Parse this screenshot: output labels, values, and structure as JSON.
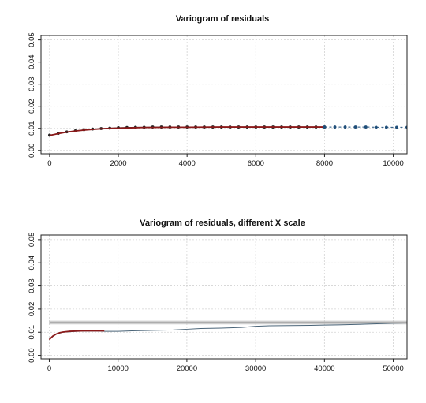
{
  "chart_data": [
    {
      "type": "line",
      "title": "Variogram of residuals",
      "xlabel": "",
      "ylabel": "",
      "xlim": [
        -250,
        10400
      ],
      "ylim": [
        -0.0015,
        0.052
      ],
      "xticks": [
        0,
        2000,
        4000,
        6000,
        8000,
        10000
      ],
      "yticks": [
        0.0,
        0.01,
        0.02,
        0.03,
        0.04,
        0.05
      ],
      "ytick_labels": [
        "0.00",
        "0.01",
        "0.02",
        "0.03",
        "0.04",
        "0.05"
      ],
      "grid": true,
      "series": [
        {
          "kind": "points-solid",
          "color": "#333333",
          "x": [
            0,
            250,
            500,
            750,
            1000,
            1250,
            1500,
            1750,
            2000,
            2250,
            2500,
            2750,
            3000,
            3250,
            3500,
            3750,
            4000,
            4250,
            4500,
            4750,
            5000,
            5250,
            5500,
            5750,
            6000,
            6250,
            6500,
            6750,
            7000,
            7250,
            7500,
            7750,
            8000
          ],
          "y": [
            0.0069,
            0.0077,
            0.0084,
            0.0089,
            0.0094,
            0.0097,
            0.0099,
            0.0101,
            0.0103,
            0.0104,
            0.0105,
            0.0105,
            0.0106,
            0.0106,
            0.0106,
            0.0106,
            0.0106,
            0.0106,
            0.0106,
            0.0106,
            0.0106,
            0.0106,
            0.0106,
            0.0106,
            0.0106,
            0.0106,
            0.0106,
            0.0106,
            0.0106,
            0.0106,
            0.0106,
            0.0106,
            0.0106
          ]
        },
        {
          "kind": "fit-line",
          "color": "#8b1a1a",
          "x": [
            0,
            250,
            500,
            750,
            1000,
            1250,
            1500,
            1750,
            2000,
            2250,
            2500,
            2750,
            3000,
            3500,
            4000,
            5000,
            6000,
            7000,
            8000
          ],
          "y": [
            0.0068,
            0.0076,
            0.0083,
            0.0088,
            0.0092,
            0.0095,
            0.0098,
            0.01,
            0.0101,
            0.0102,
            0.0103,
            0.0104,
            0.0104,
            0.0105,
            0.0105,
            0.0106,
            0.0106,
            0.0106,
            0.0106
          ]
        },
        {
          "kind": "points-dashed",
          "color": "#1f4e79",
          "x": [
            8000,
            8300,
            8600,
            8900,
            9200,
            9500,
            9800,
            10100,
            10400
          ],
          "y": [
            0.0106,
            0.0106,
            0.0106,
            0.0106,
            0.0106,
            0.0105,
            0.0105,
            0.0105,
            0.0105
          ]
        }
      ]
    },
    {
      "type": "line",
      "title": "Variogram of residuals, different X scale",
      "xlabel": "",
      "ylabel": "",
      "xlim": [
        -1200,
        52000
      ],
      "ylim": [
        -0.0015,
        0.052
      ],
      "xticks": [
        0,
        10000,
        20000,
        30000,
        40000,
        50000
      ],
      "yticks": [
        0.0,
        0.01,
        0.02,
        0.03,
        0.04,
        0.05
      ],
      "ytick_labels": [
        "0.00",
        "0.01",
        "0.02",
        "0.03",
        "0.04",
        "0.05"
      ],
      "grid": true,
      "series": [
        {
          "kind": "band",
          "color": "#bbbbbb",
          "x": [
            0,
            52000
          ],
          "y_low": [
            0.0134,
            0.0134
          ],
          "y_high": [
            0.015,
            0.015
          ]
        },
        {
          "kind": "line",
          "color": "#999999",
          "x": [
            0,
            52000
          ],
          "y": [
            0.0142,
            0.0142
          ]
        },
        {
          "kind": "line",
          "color": "#4a6478",
          "x": [
            0,
            1000,
            2000,
            4000,
            6000,
            8000,
            10000,
            12000,
            15000,
            18000,
            20000,
            22000,
            25000,
            28000,
            30000,
            32000,
            35000,
            38000,
            40000,
            42000,
            45000,
            48000,
            50000,
            52000
          ],
          "y": [
            0.007,
            0.0092,
            0.01,
            0.0104,
            0.0105,
            0.0104,
            0.0104,
            0.0106,
            0.0108,
            0.011,
            0.0113,
            0.0116,
            0.0118,
            0.0121,
            0.0126,
            0.0128,
            0.0129,
            0.013,
            0.0131,
            0.0132,
            0.0134,
            0.0137,
            0.0139,
            0.014
          ]
        },
        {
          "kind": "fit-line",
          "color": "#8b1a1a",
          "x": [
            0,
            500,
            1000,
            1500,
            2000,
            3000,
            4000,
            5000,
            6000,
            7000,
            8000
          ],
          "y": [
            0.0068,
            0.0083,
            0.0092,
            0.0098,
            0.0101,
            0.0104,
            0.0105,
            0.0106,
            0.0106,
            0.0106,
            0.0106
          ]
        }
      ]
    }
  ]
}
